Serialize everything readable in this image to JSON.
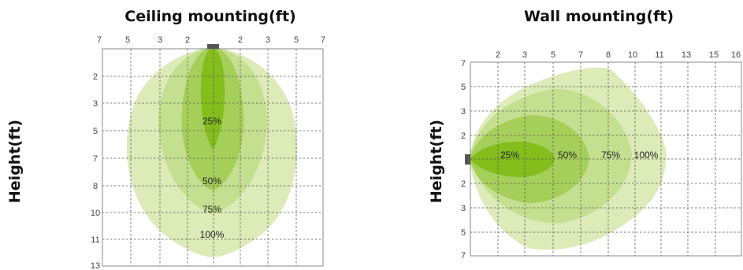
{
  "chart_data": [
    {
      "type": "beam-pattern",
      "title": "Ceiling mounting(ft)",
      "ylabel": "Height(ft)",
      "x_ticks": [
        "7",
        "5",
        "3",
        "2",
        "2",
        "3",
        "5",
        "7"
      ],
      "y_ticks": [
        "2",
        "3",
        "5",
        "7",
        "8",
        "10",
        "11",
        "13"
      ],
      "grid": true,
      "zones": [
        {
          "label": "100%",
          "color": "#dcebb8"
        },
        {
          "label": "75%",
          "color": "#c4df8f"
        },
        {
          "label": "50%",
          "color": "#a6cf5a"
        },
        {
          "label": "25%",
          "color": "#84bd1c"
        }
      ]
    },
    {
      "type": "beam-pattern",
      "title": "Wall mounting(ft)",
      "ylabel": "Height(ft)",
      "x_ticks": [
        "2",
        "3",
        "5",
        "7",
        "8",
        "10",
        "11",
        "13",
        "15",
        "16"
      ],
      "y_ticks": [
        "7",
        "5",
        "3",
        "2",
        "2",
        "3",
        "5",
        "7"
      ],
      "grid": true,
      "zones": [
        {
          "label": "100%",
          "color": "#dcebb8"
        },
        {
          "label": "75%",
          "color": "#c4df8f"
        },
        {
          "label": "50%",
          "color": "#a6cf5a"
        },
        {
          "label": "25%",
          "color": "#84bd1c"
        }
      ]
    }
  ]
}
